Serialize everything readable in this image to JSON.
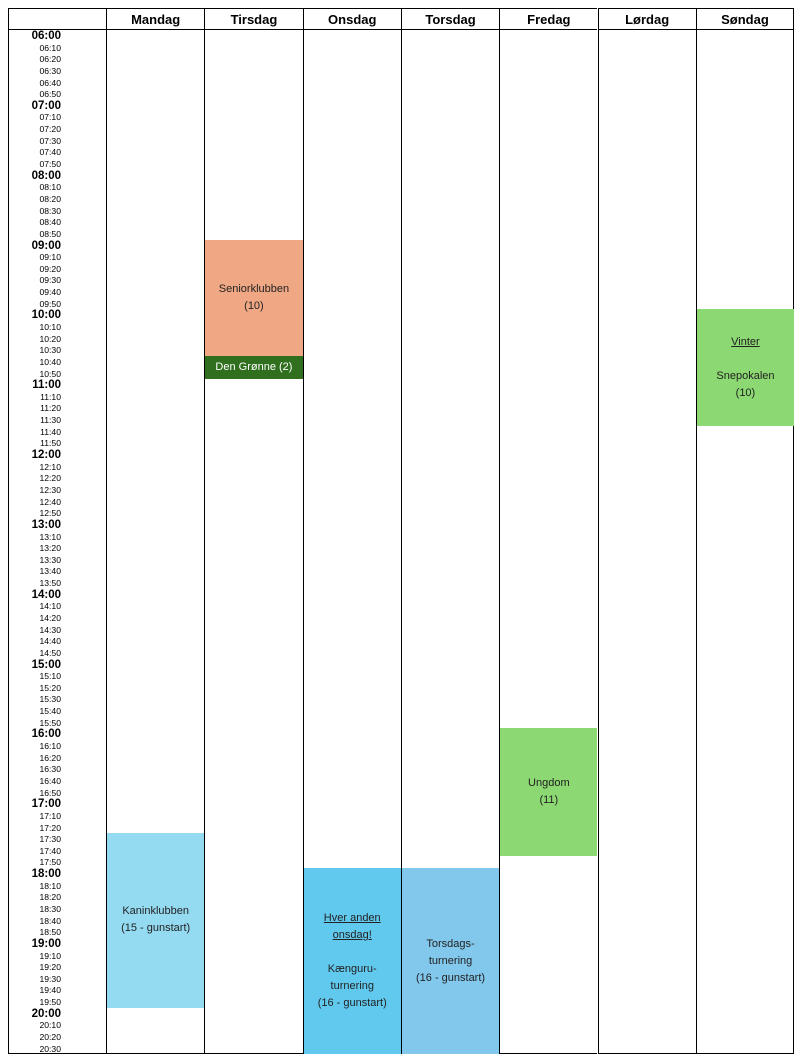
{
  "days": [
    {
      "id": "mandag",
      "label": "Mandag"
    },
    {
      "id": "tirsdag",
      "label": "Tirsdag"
    },
    {
      "id": "onsdag",
      "label": "Onsdag"
    },
    {
      "id": "torsdag",
      "label": "Torsdag"
    },
    {
      "id": "fredag",
      "label": "Fredag"
    },
    {
      "id": "lordag",
      "label": "Lørdag"
    },
    {
      "id": "sondag",
      "label": "Søndag"
    }
  ],
  "times": [
    "06:00",
    "06:10",
    "06:20",
    "06:30",
    "06:40",
    "06:50",
    "07:00",
    "07:10",
    "07:20",
    "07:30",
    "07:40",
    "07:50",
    "08:00",
    "08:10",
    "08:20",
    "08:30",
    "08:40",
    "08:50",
    "09:00",
    "09:10",
    "09:20",
    "09:30",
    "09:40",
    "09:50",
    "10:00",
    "10:10",
    "10:20",
    "10:30",
    "10:40",
    "10:50",
    "11:00",
    "11:10",
    "11:20",
    "11:30",
    "11:40",
    "11:50",
    "12:00",
    "12:10",
    "12:20",
    "12:30",
    "12:40",
    "12:50",
    "13:00",
    "13:10",
    "13:20",
    "13:30",
    "13:40",
    "13:50",
    "14:00",
    "14:10",
    "14:20",
    "14:30",
    "14:40",
    "14:50",
    "15:00",
    "15:10",
    "15:20",
    "15:30",
    "15:40",
    "15:50",
    "16:00",
    "16:10",
    "16:20",
    "16:30",
    "16:40",
    "16:50",
    "17:00",
    "17:10",
    "17:20",
    "17:30",
    "17:40",
    "17:50",
    "18:00",
    "18:10",
    "18:20",
    "18:30",
    "18:40",
    "18:50",
    "19:00",
    "19:10",
    "19:20",
    "19:30",
    "19:40",
    "19:50",
    "20:00",
    "20:10",
    "20:20",
    "20:30"
  ],
  "colors": {
    "salmon": "#f0a884",
    "dark_green": "#2f6f1e",
    "light_green": "#8cd872",
    "light_blue": "#94dbf2",
    "medium_blue": "#62c9ee",
    "steel_blue": "#82c8ec"
  },
  "events": [
    {
      "name": "seniorklubben",
      "day": "tirsdag",
      "start": "09:00",
      "end": "10:40",
      "color": "salmon",
      "text_color": "#222222",
      "lines": [
        {
          "text": "Seniorklubben"
        },
        {
          "text": "(10)"
        }
      ]
    },
    {
      "name": "den-gronne",
      "day": "tirsdag",
      "start": "10:40",
      "end": "11:00",
      "color": "dark_green",
      "text_color": "#ffffff",
      "lines": [
        {
          "text": "Den Grønne (2)"
        }
      ]
    },
    {
      "name": "vinter-snepokalen",
      "day": "sondag",
      "start": "10:00",
      "end": "11:40",
      "color": "light_green",
      "text_color": "#222222",
      "lines": [
        {
          "text": "Vinter",
          "underline": true
        },
        {
          "text": ""
        },
        {
          "text": "Snepokalen"
        },
        {
          "text": "(10)"
        }
      ]
    },
    {
      "name": "ungdom",
      "day": "fredag",
      "start": "16:00",
      "end": "17:50",
      "color": "light_green",
      "text_color": "#222222",
      "lines": [
        {
          "text": "Ungdom"
        },
        {
          "text": "(11)"
        }
      ]
    },
    {
      "name": "kaninklubben",
      "day": "mandag",
      "start": "17:30",
      "end": "20:00",
      "color": "light_blue",
      "text_color": "#222222",
      "lines": [
        {
          "text": "Kaninklubben"
        },
        {
          "text": "(15 - gunstart)"
        }
      ]
    },
    {
      "name": "kanguru-turnering",
      "day": "onsdag",
      "start": "18:00",
      "end": "20:40",
      "color": "medium_blue",
      "text_color": "#222222",
      "lines": [
        {
          "text": "Hver anden",
          "underline": true
        },
        {
          "text": "onsdag!",
          "underline": true
        },
        {
          "text": ""
        },
        {
          "text": "Kænguru-"
        },
        {
          "text": "turnering"
        },
        {
          "text": "(16 - gunstart)"
        }
      ]
    },
    {
      "name": "torsdags-turnering",
      "day": "torsdag",
      "start": "18:00",
      "end": "20:40",
      "color": "steel_blue",
      "text_color": "#222222",
      "lines": [
        {
          "text": "Torsdags-"
        },
        {
          "text": "turnering"
        },
        {
          "text": "(16 - gunstart)"
        }
      ]
    }
  ]
}
